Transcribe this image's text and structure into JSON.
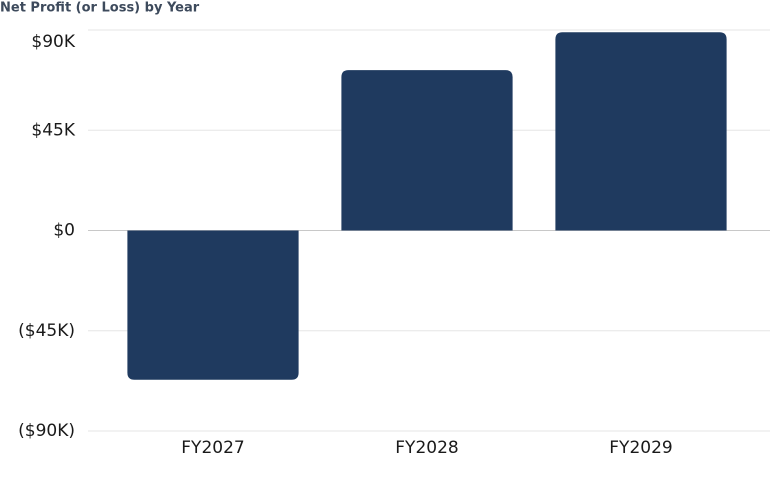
{
  "chart_data": {
    "type": "bar",
    "title": "Net Profit (or Loss) by Year",
    "categories": [
      "FY2027",
      "FY2028",
      "FY2029"
    ],
    "values": [
      -67000,
      72000,
      89000
    ],
    "color": "#1f3a5f",
    "ylim": [
      -90000,
      90000
    ],
    "yticks": [
      {
        "value": -90000,
        "label": "($90K)"
      },
      {
        "value": -45000,
        "label": "($45K)"
      },
      {
        "value": 0,
        "label": "$0"
      },
      {
        "value": 45000,
        "label": "$45K"
      },
      {
        "value": 90000,
        "label": "$90K"
      }
    ],
    "grid": true
  }
}
